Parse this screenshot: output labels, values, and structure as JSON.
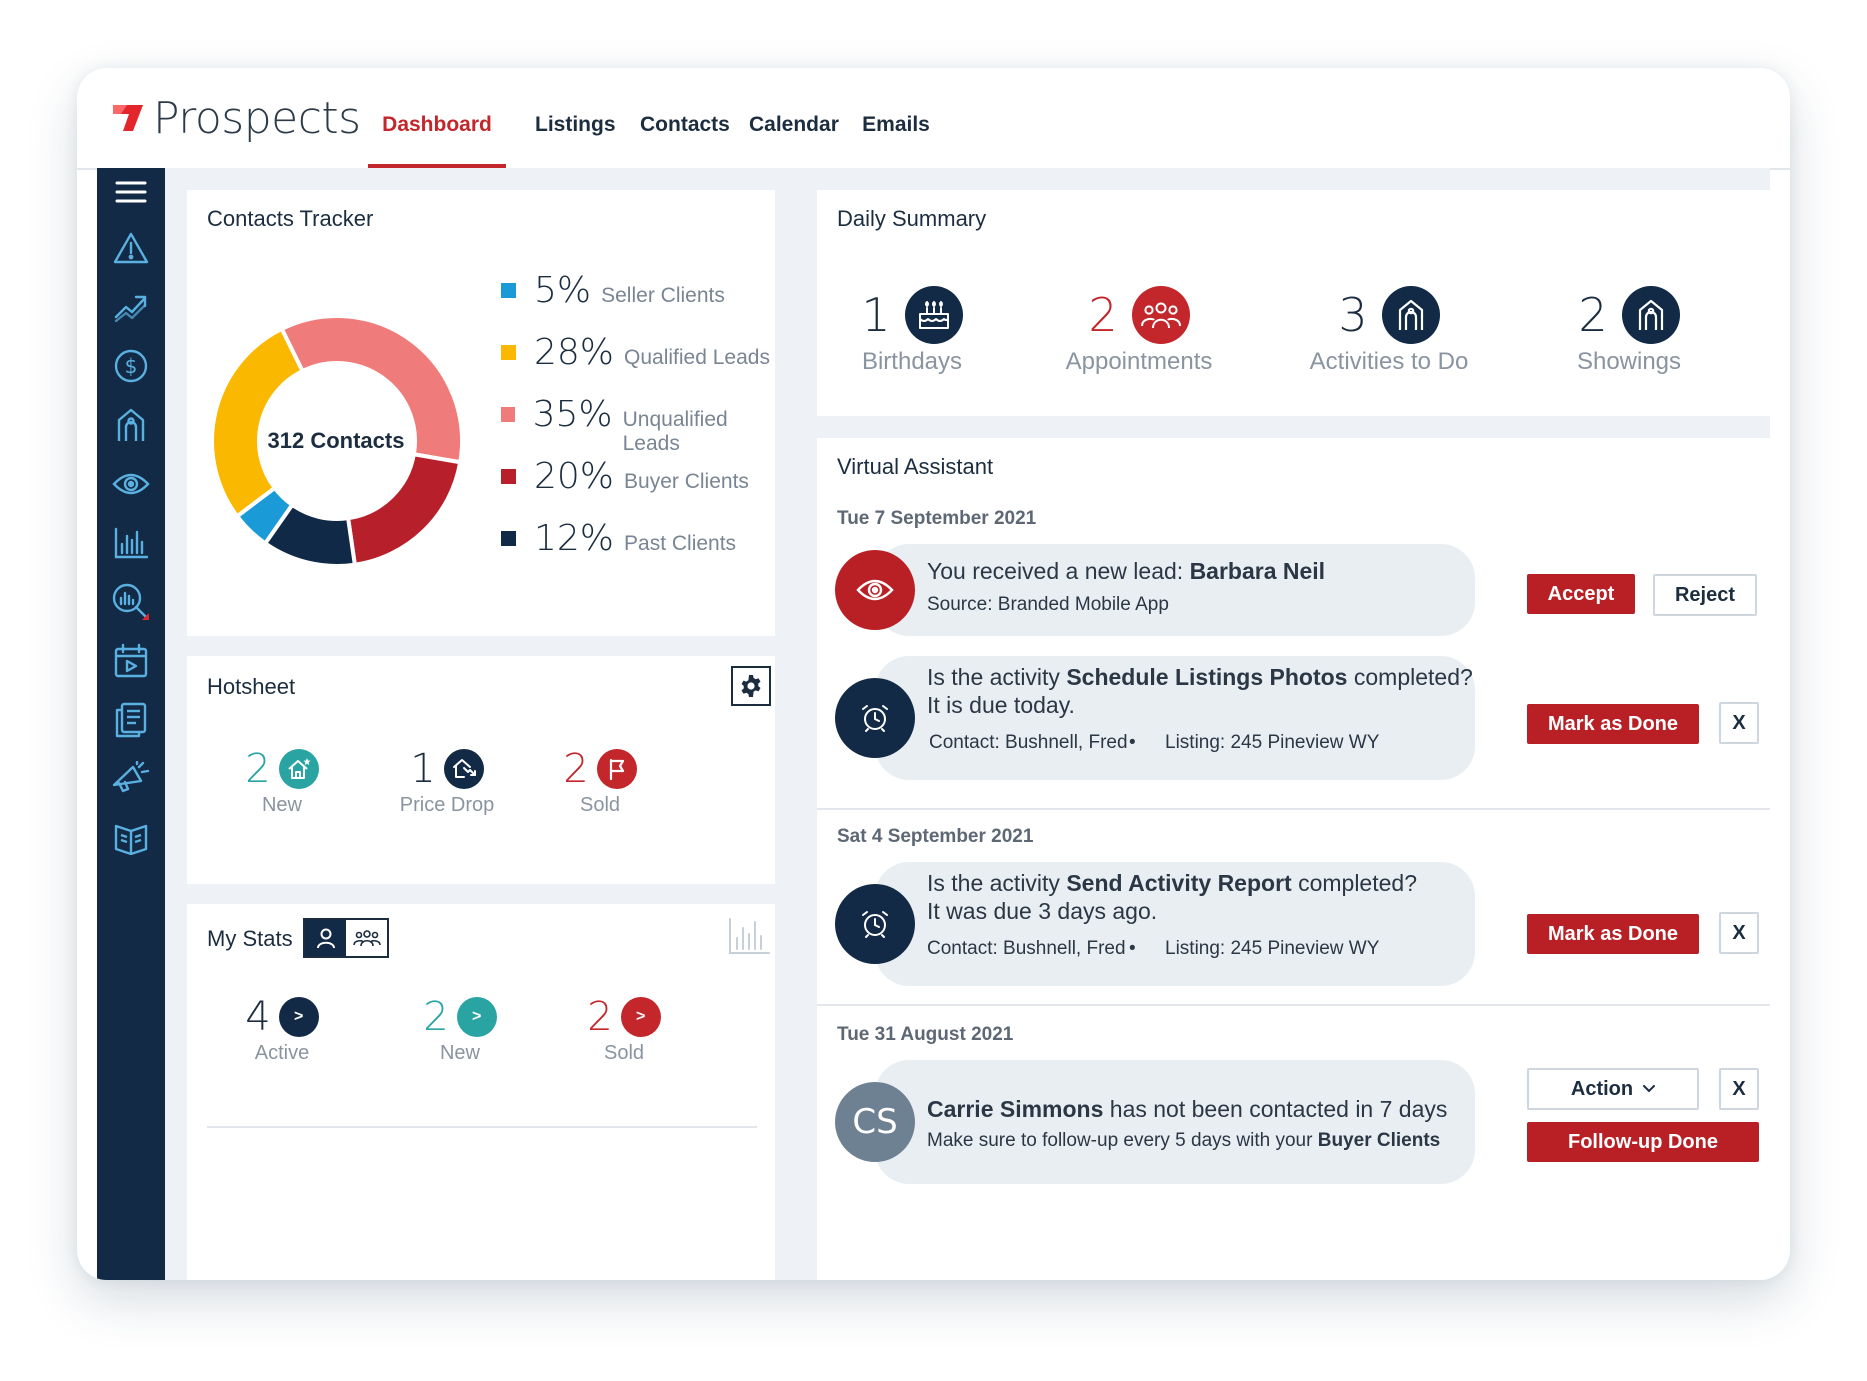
{
  "app": {
    "name": "Prospects"
  },
  "nav": {
    "tabs": [
      {
        "label": "Dashboard",
        "active": true
      },
      {
        "label": "Listings",
        "active": false
      },
      {
        "label": "Contacts",
        "active": false
      },
      {
        "label": "Calendar",
        "active": false
      },
      {
        "label": "Emails",
        "active": false
      }
    ]
  },
  "sidebar": {
    "icons": [
      "menu-icon",
      "alert-icon",
      "trending-up-icon",
      "dollar-icon",
      "listing-house-icon",
      "eye-icon",
      "bar-chart-icon",
      "market-analysis-icon",
      "calendar-play-icon",
      "documents-icon",
      "megaphone-icon",
      "book-icon"
    ]
  },
  "contacts_tracker": {
    "title": "Contacts Tracker",
    "center_label": "312 Contacts",
    "legend": [
      {
        "pct": "5%",
        "label": "Seller Clients"
      },
      {
        "pct": "28%",
        "label": "Qualified Leads"
      },
      {
        "pct": "35%",
        "label": "Unqualified Leads"
      },
      {
        "pct": "20%",
        "label": "Buyer Clients"
      },
      {
        "pct": "12%",
        "label": "Past Clients"
      }
    ]
  },
  "chart_data": {
    "type": "pie",
    "categories": [
      "Seller Clients",
      "Qualified Leads",
      "Unqualified Leads",
      "Buyer Clients",
      "Past Clients"
    ],
    "values": [
      5,
      28,
      35,
      20,
      12
    ],
    "colors": [
      "#1a9bd7",
      "#fbb800",
      "#f07b7b",
      "#b71f2a",
      "#0f2946"
    ],
    "title": "Contacts Tracker",
    "center_label": "312 Contacts",
    "legend_placement": "right"
  },
  "hotsheet": {
    "title": "Hotsheet",
    "stats": [
      {
        "value": "2",
        "label": "New",
        "color": "#2aa3a3",
        "icon": "house-star-icon"
      },
      {
        "value": "1",
        "label": "Price Drop",
        "color": "#1c2d40",
        "icon": "price-drop-icon"
      },
      {
        "value": "2",
        "label": "Sold",
        "color": "#c3272b",
        "icon": "flag-icon"
      }
    ]
  },
  "my_stats": {
    "title": "My Stats",
    "stats": [
      {
        "value": "4",
        "label": "Active",
        "color": "#1c2d40"
      },
      {
        "value": "2",
        "label": "New",
        "color": "#2aa3a3"
      },
      {
        "value": "2",
        "label": "Sold",
        "color": "#c3272b"
      }
    ],
    "arrow": ">"
  },
  "daily_summary": {
    "title": "Daily Summary",
    "items": [
      {
        "value": "1",
        "label": "Birthdays",
        "color": "#1c2d40",
        "icon": "birthday-cake-icon"
      },
      {
        "value": "2",
        "label": "Appointments",
        "color": "#c3272b",
        "icon": "group-icon"
      },
      {
        "value": "3",
        "label": "Activities to Do",
        "color": "#1c2d40",
        "icon": "house-icon"
      },
      {
        "value": "2",
        "label": "Showings",
        "color": "#1c2d40",
        "icon": "showing-house-icon"
      }
    ]
  },
  "virtual_assistant": {
    "title": "Virtual Assistant",
    "groups": [
      {
        "date": "Tue 7 September 2021"
      },
      {
        "date": "Sat 4 September 2021"
      },
      {
        "date": "Tue 31 August 2021"
      }
    ],
    "lead": {
      "prefix": "You received a new lead: ",
      "name": "Barbara Neil",
      "source_label": "Source:",
      "source": "Branded Mobile App",
      "accept": "Accept",
      "reject": "Reject"
    },
    "activity1": {
      "prefix": "Is the activity ",
      "name": "Schedule Listings Photos",
      "suffix": " completed?",
      "due": "It is due today.",
      "contact": "Contact: Bushnell, Fred",
      "bullet": "•",
      "listing": "Listing: 245 Pineview WY",
      "done": "Mark as Done",
      "dismiss": "X"
    },
    "activity2": {
      "prefix": "Is the activity ",
      "name": "Send Activity Report",
      "suffix": " completed?",
      "due": "It was due 3 days ago.",
      "contact": "Contact: Bushnell, Fred",
      "bullet": "•",
      "listing": "Listing: 245 Pineview WY",
      "done": "Mark as Done",
      "dismiss": "X"
    },
    "followup": {
      "initials": "CS",
      "name": "Carrie Simmons",
      "suffix": " has not been contacted in 7 days",
      "line2_prefix": "Make sure to follow-up every 5 days with your ",
      "line2_bold": "Buyer Clients",
      "action": "Action",
      "dismiss": "X",
      "done": "Follow-up Done"
    }
  }
}
